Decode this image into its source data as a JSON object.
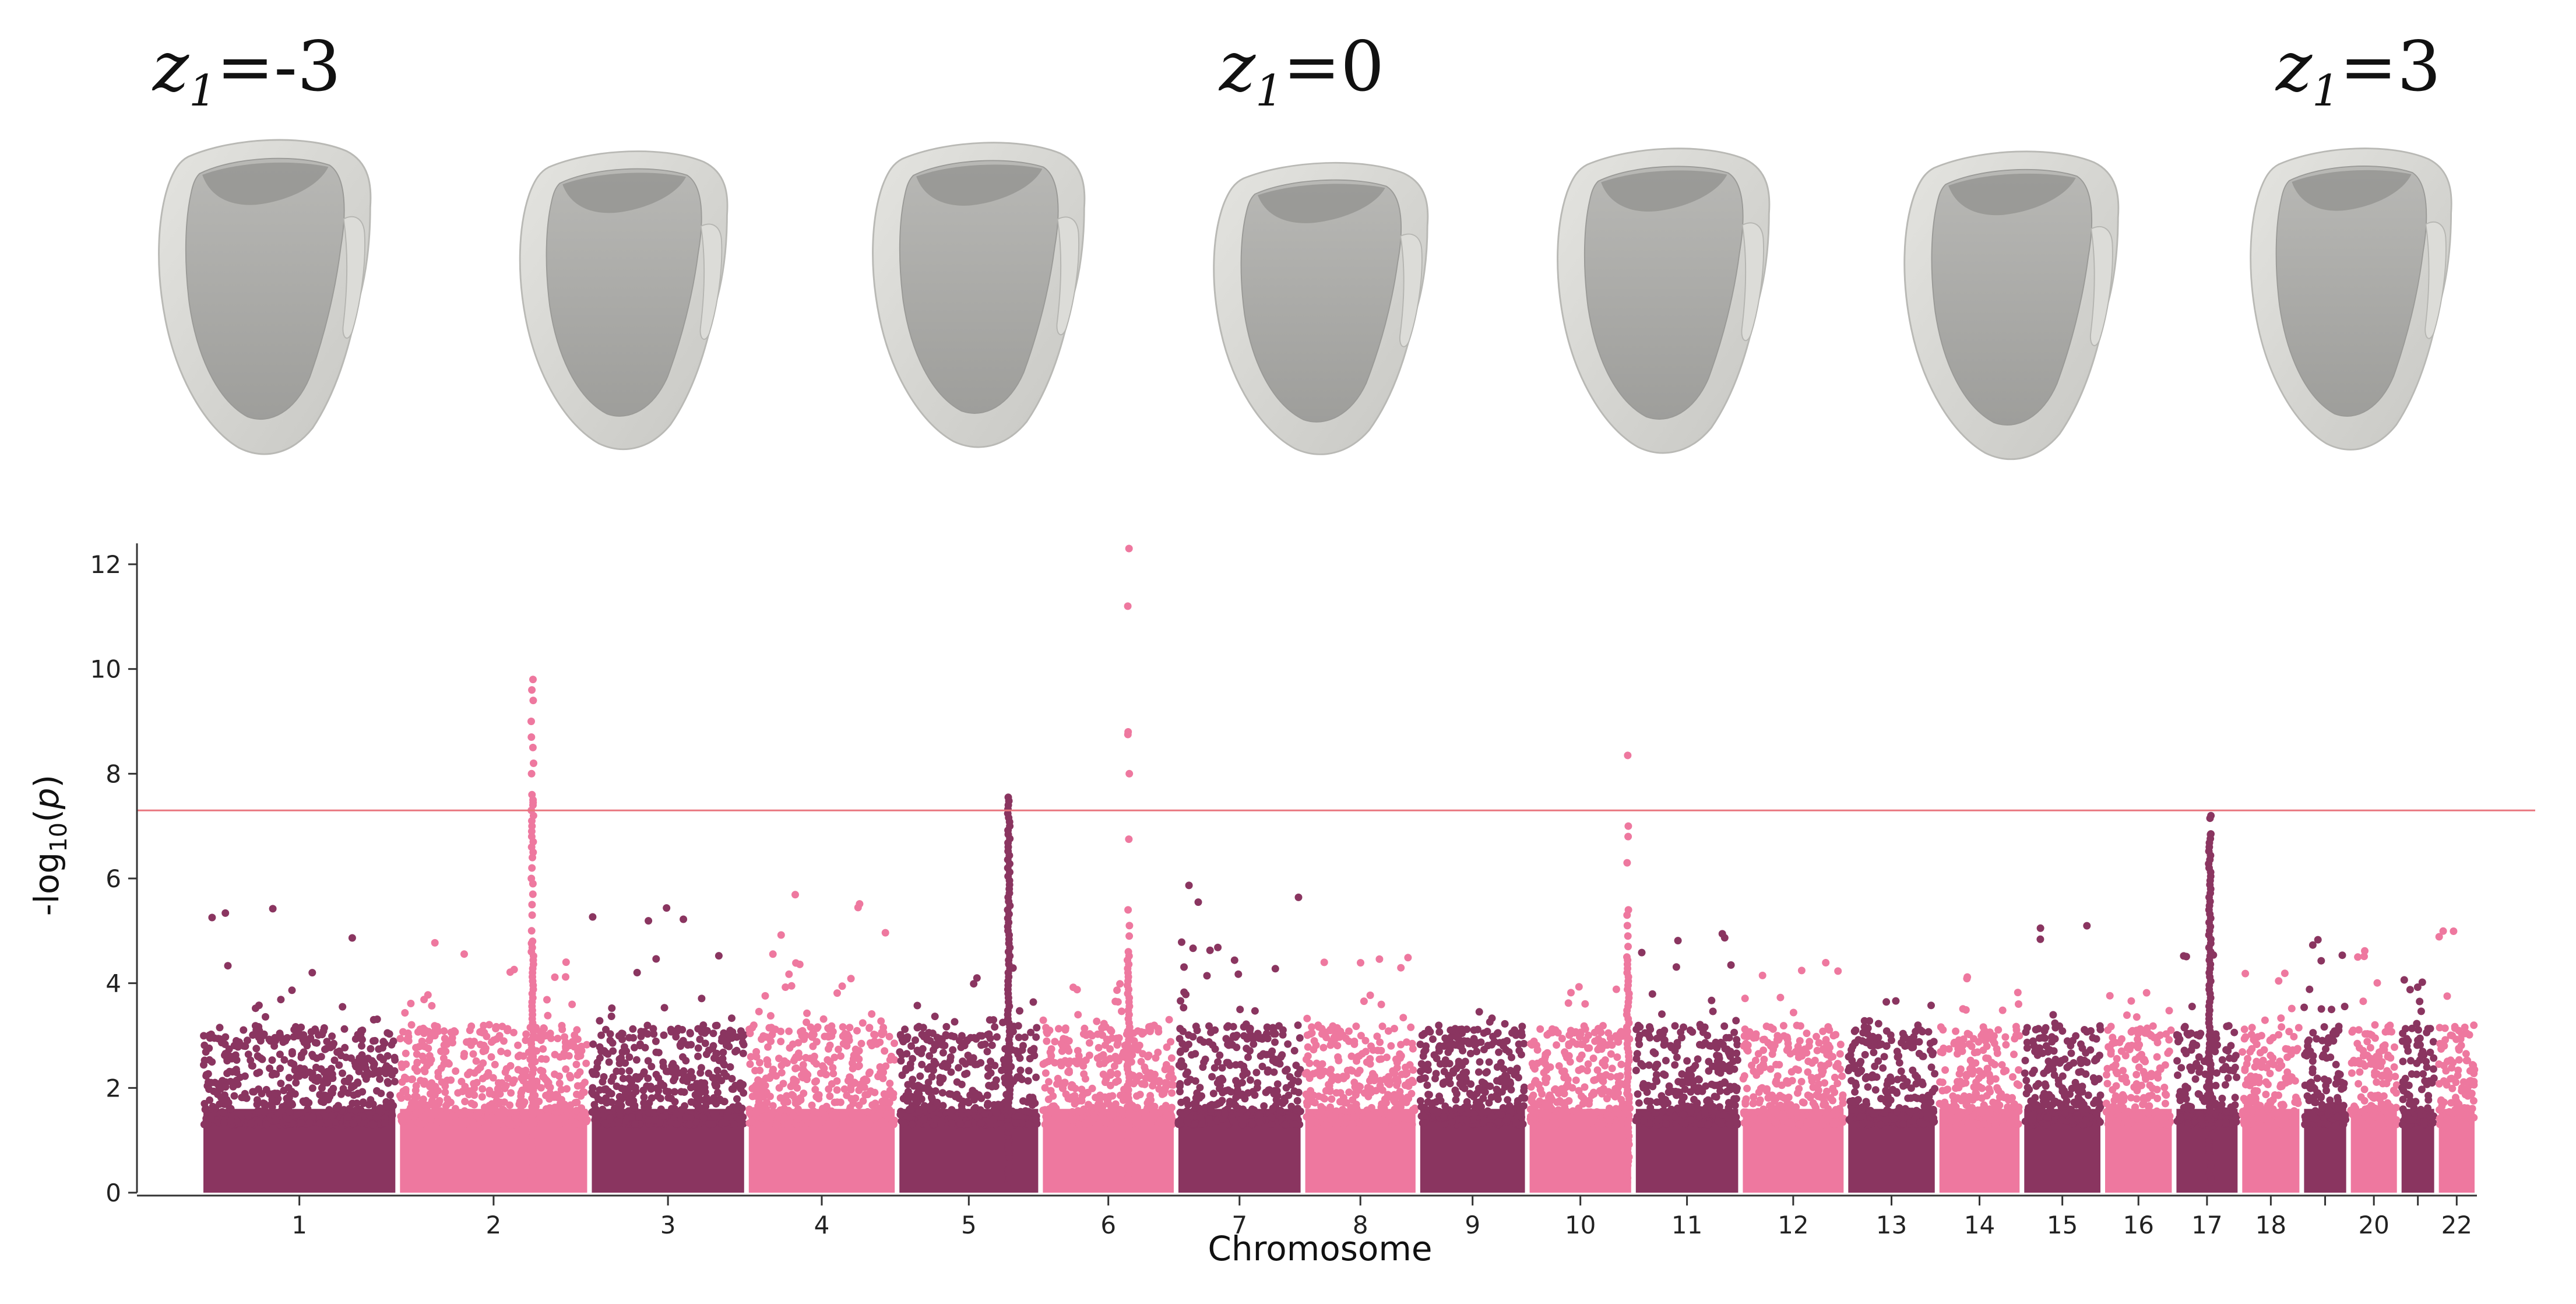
{
  "latent_labels": [
    {
      "var": "z",
      "sub": "1",
      "rest": "=-3"
    },
    {
      "var": "z",
      "sub": "1",
      "rest": "=0"
    },
    {
      "var": "z",
      "sub": "1",
      "rest": "=3"
    }
  ],
  "heart_renderings": {
    "count": 7,
    "label_positions": [
      "first",
      "middle",
      "last"
    ],
    "colors": {
      "outer": "#d6d6d2",
      "inner": "#a9a9a6",
      "edge": "#b9b9b5"
    }
  },
  "colors": {
    "dark": "#8a3560",
    "light": "#ee789f",
    "threshold_line": "#e9777f",
    "axis": "#333333"
  },
  "chart_data": {
    "type": "scatter",
    "subtype": "manhattan",
    "title": "",
    "xlabel": "Chromosome",
    "ylabel": "-log10(p)",
    "ylim": [
      0,
      12.4
    ],
    "yticks": [
      0,
      2,
      4,
      6,
      8,
      10,
      12
    ],
    "threshold": 7.3,
    "grid": false,
    "chromosome_labels": [
      "1",
      "2",
      "3",
      "4",
      "5",
      "6",
      "7",
      "8",
      "9",
      "10",
      "11",
      "12",
      "13",
      "14",
      "15",
      "16",
      "17",
      "18",
      "20",
      "22"
    ],
    "chromosome_spans": [
      {
        "chr": "1",
        "start": 0,
        "end": 248,
        "color": "dark",
        "max_bg": 5.6
      },
      {
        "chr": "2",
        "start": 248,
        "end": 490,
        "color": "light",
        "max_bg": 4.8
      },
      {
        "chr": "3",
        "start": 490,
        "end": 688,
        "color": "dark",
        "max_bg": 5.6
      },
      {
        "chr": "4",
        "start": 688,
        "end": 878,
        "color": "light",
        "max_bg": 5.7
      },
      {
        "chr": "5",
        "start": 878,
        "end": 1059,
        "color": "dark",
        "max_bg": 4.3
      },
      {
        "chr": "6",
        "start": 1059,
        "end": 1230,
        "color": "light",
        "max_bg": 4.2
      },
      {
        "chr": "7",
        "start": 1230,
        "end": 1390,
        "color": "dark",
        "max_bg": 5.9
      },
      {
        "chr": "8",
        "start": 1390,
        "end": 1535,
        "color": "light",
        "max_bg": 4.7
      },
      {
        "chr": "9",
        "start": 1535,
        "end": 1673,
        "color": "dark",
        "max_bg": 3.5
      },
      {
        "chr": "10",
        "start": 1673,
        "end": 1807,
        "color": "light",
        "max_bg": 4.0
      },
      {
        "chr": "11",
        "start": 1807,
        "end": 1942,
        "color": "dark",
        "max_bg": 5.1
      },
      {
        "chr": "12",
        "start": 1942,
        "end": 2075,
        "color": "light",
        "max_bg": 4.4
      },
      {
        "chr": "13",
        "start": 2075,
        "end": 2190,
        "color": "dark",
        "max_bg": 3.9
      },
      {
        "chr": "14",
        "start": 2190,
        "end": 2297,
        "color": "light",
        "max_bg": 4.2
      },
      {
        "chr": "15",
        "start": 2297,
        "end": 2399,
        "color": "dark",
        "max_bg": 5.2
      },
      {
        "chr": "16",
        "start": 2399,
        "end": 2489,
        "color": "light",
        "max_bg": 3.9
      },
      {
        "chr": "17",
        "start": 2489,
        "end": 2572,
        "color": "dark",
        "max_bg": 4.8
      },
      {
        "chr": "18",
        "start": 2572,
        "end": 2650,
        "color": "light",
        "max_bg": 4.4
      },
      {
        "chr": "19",
        "start": 2650,
        "end": 2709,
        "color": "dark",
        "max_bg": 4.9
      },
      {
        "chr": "20",
        "start": 2709,
        "end": 2773,
        "color": "light",
        "max_bg": 4.8
      },
      {
        "chr": "21",
        "start": 2773,
        "end": 2820,
        "color": "dark",
        "max_bg": 4.2
      },
      {
        "chr": "22",
        "start": 2820,
        "end": 2871,
        "color": "light",
        "max_bg": 5.0
      }
    ],
    "peaks": [
      {
        "chr": "2",
        "pos": 418,
        "color": "light",
        "values": [
          9.8,
          9.6,
          9.4,
          9.0,
          8.7,
          8.5,
          8.2,
          8.0,
          7.6,
          7.5,
          7.45,
          7.4,
          7.3,
          7.2,
          7.1,
          7.0,
          6.9,
          6.8,
          6.7,
          6.6,
          6.5,
          6.4,
          6.2,
          6.0,
          5.9,
          5.7,
          5.5,
          5.3,
          5.0,
          4.8
        ]
      },
      {
        "chr": "5",
        "pos": 1019,
        "color": "dark",
        "values": [
          7.55
        ]
      },
      {
        "chr": "6",
        "pos": 1170,
        "color": "light",
        "values": [
          12.3,
          11.2,
          8.8,
          8.75,
          8.0,
          6.75,
          5.4,
          5.1,
          4.9,
          4.6
        ]
      },
      {
        "chr": "10",
        "pos": 1800,
        "color": "light",
        "values": [
          8.35,
          7.0,
          6.8,
          6.3,
          5.4,
          5.3,
          5.1,
          4.9,
          4.7,
          4.5
        ]
      },
      {
        "chr": "17",
        "pos": 2534,
        "color": "dark",
        "values": [
          7.2,
          7.15,
          6.85
        ]
      }
    ]
  }
}
